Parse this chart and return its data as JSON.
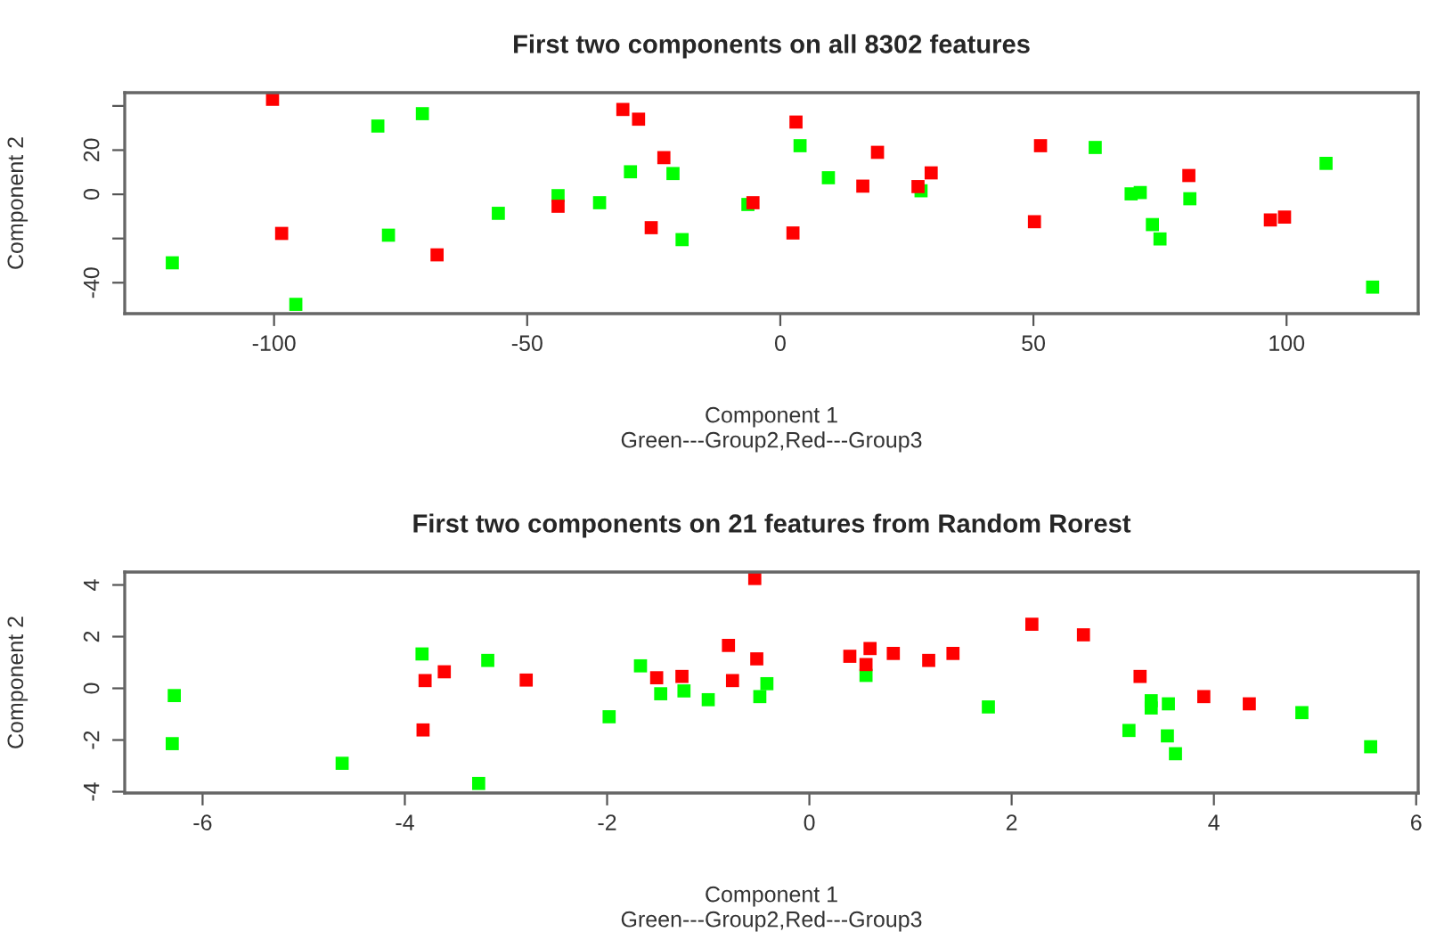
{
  "chart_data": [
    {
      "type": "scatter",
      "title": "First two components on all 8302 features",
      "xlabel": "Component 1",
      "ylabel": "Component 2",
      "annotations": [
        "Green---Group2,Red---Group3"
      ],
      "xlim": [
        -129.5,
        126
      ],
      "xticks": [
        -100,
        -50,
        0,
        50,
        100
      ],
      "ylim": [
        -54,
        46
      ],
      "yticks": [
        {
          "value": -40,
          "label": "-40"
        },
        {
          "value": -20,
          "label": null
        },
        0,
        20,
        {
          "value": 40,
          "label": null
        }
      ],
      "marker": "square",
      "grid": false,
      "legend": false,
      "series": [
        {
          "color": "#00ff00",
          "x": [
            -79.5,
            -70.7,
            -29.6,
            -21.2,
            -43.9,
            -35.7,
            -55.7,
            -77.4,
            -19.4,
            -120.1,
            -95.7,
            -6.4,
            3.9,
            9.5,
            27.8,
            62.2,
            69.3,
            71.1,
            80.9,
            73.5,
            75,
            107.8,
            117
          ],
          "values": [
            30.9,
            36.5,
            10.2,
            9.4,
            -0.6,
            -3.8,
            -8.6,
            -18.5,
            -20.5,
            -31,
            -49.8,
            -4.6,
            22,
            7.5,
            1.6,
            21.2,
            0.2,
            0.8,
            -2,
            -13.7,
            -20.2,
            14,
            -42
          ]
        },
        {
          "color": "#ff0000",
          "x": [
            -100.3,
            -31.1,
            -28,
            -23,
            -43.9,
            -98.5,
            -25.5,
            -67.8,
            -5.4,
            3.1,
            19.2,
            16.3,
            27.2,
            29.8,
            2.5,
            51.4,
            50.2,
            80.7,
            96.8,
            99.6
          ],
          "values": [
            43,
            38.4,
            34,
            16.6,
            -5.4,
            -17.7,
            -15.1,
            -27.4,
            -3.8,
            32.7,
            19,
            3.7,
            3.5,
            9.7,
            -17.5,
            22,
            -12.4,
            8.5,
            -11.6,
            -10.3
          ]
        }
      ]
    },
    {
      "type": "scatter",
      "title": "First two components on 21 features from Random Rorest",
      "xlabel": "Component 1",
      "ylabel": "Component 2",
      "annotations": [
        "Green---Group2,Red---Group3"
      ],
      "xlim": [
        -6.77,
        6.02
      ],
      "xticks": [
        -6,
        -4,
        -2,
        0,
        2,
        4,
        6
      ],
      "ylim": [
        -4.05,
        4.5
      ],
      "yticks": [
        -4,
        -2,
        0,
        2,
        4
      ],
      "marker": "square",
      "grid": false,
      "legend": false,
      "series": [
        {
          "color": "#00ff00",
          "x": [
            -6.28,
            -6.3,
            -4.62,
            -3.83,
            -3.18,
            -3.27,
            -1.98,
            -1.67,
            -1.47,
            -1.24,
            -1.0,
            -0.49,
            -0.42,
            0.56,
            1.77,
            3.16,
            3.38,
            3.38,
            3.55,
            3.54,
            3.62,
            4.87,
            5.55
          ],
          "values": [
            -0.28,
            -2.14,
            -2.9,
            1.33,
            1.08,
            -3.68,
            -1.1,
            0.87,
            -0.21,
            -0.1,
            -0.44,
            -0.32,
            0.18,
            0.5,
            -0.72,
            -1.63,
            -0.48,
            -0.76,
            -0.6,
            -1.84,
            -2.53,
            -0.94,
            -2.26
          ]
        },
        {
          "color": "#ff0000",
          "x": [
            -3.8,
            -3.82,
            -3.61,
            -2.8,
            -1.51,
            -1.26,
            -0.8,
            -0.76,
            -0.54,
            -0.52,
            0.4,
            0.6,
            0.56,
            0.83,
            1.18,
            1.42,
            2.2,
            2.71,
            3.27,
            3.9,
            4.35
          ],
          "values": [
            0.3,
            -1.61,
            0.64,
            0.32,
            0.41,
            0.46,
            1.66,
            0.3,
            4.25,
            1.14,
            1.24,
            1.54,
            0.92,
            1.35,
            1.08,
            1.35,
            2.48,
            2.07,
            0.46,
            -0.32,
            -0.6
          ]
        }
      ]
    }
  ]
}
